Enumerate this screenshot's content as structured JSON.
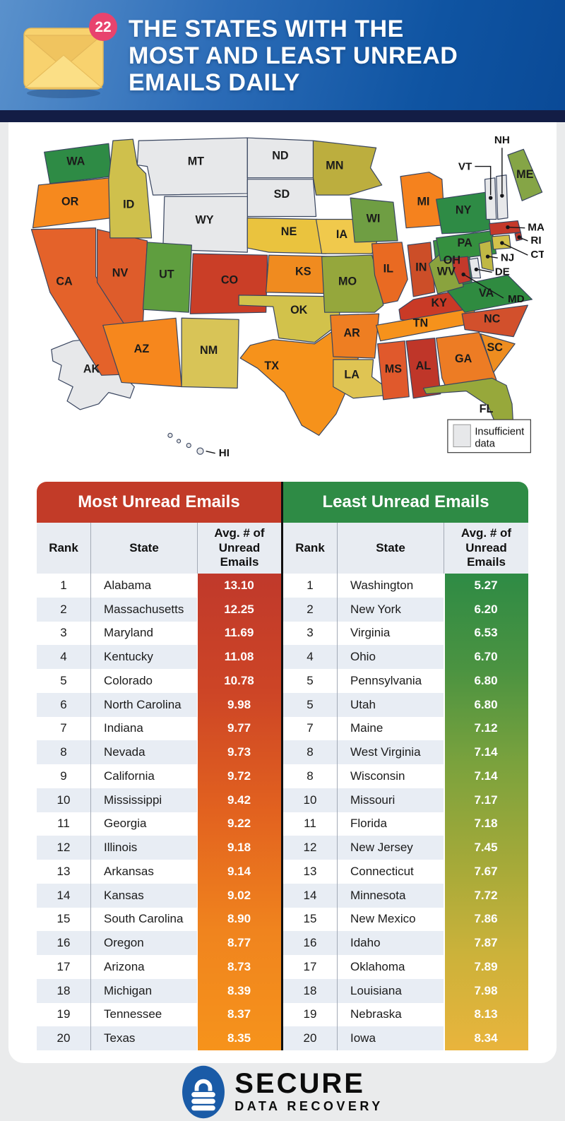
{
  "header": {
    "badge": "22",
    "title": "THE STATES WITH THE\nMOST AND LEAST UNREAD\nEMAILS DAILY"
  },
  "map": {
    "stroke": "#3a4660",
    "insufficient_color": "#e7e8ea",
    "legend_label": "Insufficient data",
    "states": [
      {
        "id": "MT",
        "color": null
      },
      {
        "id": "ND",
        "color": null
      },
      {
        "id": "SD",
        "color": null
      },
      {
        "id": "WY",
        "color": null
      },
      {
        "id": "AK",
        "color": null
      },
      {
        "id": "HI",
        "color": null
      },
      {
        "id": "WA",
        "color": "#2e8b45"
      },
      {
        "id": "OR",
        "color": "#f6891e"
      },
      {
        "id": "CA",
        "color": "#e4622a"
      },
      {
        "id": "NV",
        "color": "#de5c2b"
      },
      {
        "id": "ID",
        "color": "#cfc04c"
      },
      {
        "id": "UT",
        "color": "#5f9e3f"
      },
      {
        "id": "AZ",
        "color": "#f6871d"
      },
      {
        "id": "NM",
        "color": "#d8c457"
      },
      {
        "id": "CO",
        "color": "#ca3e27"
      },
      {
        "id": "NE",
        "color": "#eac33e"
      },
      {
        "id": "KS",
        "color": "#f08b1f"
      },
      {
        "id": "OK",
        "color": "#d2c24b"
      },
      {
        "id": "TX",
        "color": "#f6921b"
      },
      {
        "id": "MN",
        "color": "#bcae3e"
      },
      {
        "id": "IA",
        "color": "#f0c94c"
      },
      {
        "id": "MO",
        "color": "#95a73c"
      },
      {
        "id": "AR",
        "color": "#ee7e22"
      },
      {
        "id": "LA",
        "color": "#dfc453"
      },
      {
        "id": "WI",
        "color": "#6f9e43"
      },
      {
        "id": "IL",
        "color": "#e96a22"
      },
      {
        "id": "MI",
        "color": "#f5821e"
      },
      {
        "id": "IN",
        "color": "#cc4e28"
      },
      {
        "id": "OH",
        "color": "#3e9144"
      },
      {
        "id": "KY",
        "color": "#c93a26"
      },
      {
        "id": "TN",
        "color": "#f6921b"
      },
      {
        "id": "MS",
        "color": "#e0592c"
      },
      {
        "id": "AL",
        "color": "#bf3629"
      },
      {
        "id": "GA",
        "color": "#ed7c24"
      },
      {
        "id": "SC",
        "color": "#ee8d1f"
      },
      {
        "id": "NC",
        "color": "#d2502c"
      },
      {
        "id": "VA",
        "color": "#2f8b40"
      },
      {
        "id": "WV",
        "color": "#8aa33e"
      },
      {
        "id": "PA",
        "color": "#35903f"
      },
      {
        "id": "NY",
        "color": "#2e8b45"
      },
      {
        "id": "ME",
        "color": "#85a546"
      },
      {
        "id": "FL",
        "color": "#97a83b"
      },
      {
        "id": "VT",
        "color": null
      },
      {
        "id": "NH",
        "color": null
      },
      {
        "id": "MA",
        "color": "#c4392b"
      },
      {
        "id": "RI",
        "color": "#c4392b"
      },
      {
        "id": "CT",
        "color": "#d2c24a"
      },
      {
        "id": "NJ",
        "color": "#c0b845"
      },
      {
        "id": "DE",
        "color": null
      },
      {
        "id": "MD",
        "color": "#c4392b"
      }
    ]
  },
  "tables": {
    "columns": [
      "Rank",
      "State",
      "Avg. # of Unread Emails"
    ],
    "most": {
      "title": "Most Unread Emails",
      "banner_color": "#c23b28",
      "value_gradient": [
        "#c0392b",
        "#cd4526",
        "#e2621f",
        "#f0841e",
        "#f6931b"
      ]
    },
    "least": {
      "title": "Least Unread Emails",
      "banner_color": "#2e8b45",
      "value_gradient": [
        "#2e8b45",
        "#4b9341",
        "#7ba23d",
        "#a3a939",
        "#ccb23a",
        "#e9b43c"
      ]
    }
  },
  "chart_data": {
    "type": "choropleth+ranking-table",
    "title": "The States with the Most and Least Unread Emails Daily",
    "insufficient_data_states": [
      "MT",
      "ND",
      "SD",
      "WY",
      "VT",
      "NH",
      "DE",
      "AK",
      "HI"
    ],
    "most_unread": {
      "columns": [
        "Rank",
        "State",
        "Avg. # of Unread Emails"
      ],
      "rows": [
        [
          "1",
          "Alabama",
          "13.10"
        ],
        [
          "2",
          "Massachusetts",
          "12.25"
        ],
        [
          "3",
          "Maryland",
          "11.69"
        ],
        [
          "4",
          "Kentucky",
          "11.08"
        ],
        [
          "5",
          "Colorado",
          "10.78"
        ],
        [
          "6",
          "North Carolina",
          "9.98"
        ],
        [
          "7",
          "Indiana",
          "9.77"
        ],
        [
          "8",
          "Nevada",
          "9.73"
        ],
        [
          "9",
          "California",
          "9.72"
        ],
        [
          "10",
          "Mississippi",
          "9.42"
        ],
        [
          "11",
          "Georgia",
          "9.22"
        ],
        [
          "12",
          "Illinois",
          "9.18"
        ],
        [
          "13",
          "Arkansas",
          "9.14"
        ],
        [
          "14",
          "Kansas",
          "9.02"
        ],
        [
          "15",
          "South Carolina",
          "8.90"
        ],
        [
          "16",
          "Oregon",
          "8.77"
        ],
        [
          "17",
          "Arizona",
          "8.73"
        ],
        [
          "18",
          "Michigan",
          "8.39"
        ],
        [
          "19",
          "Tennessee",
          "8.37"
        ],
        [
          "20",
          "Texas",
          "8.35"
        ]
      ]
    },
    "least_unread": {
      "columns": [
        "Rank",
        "State",
        "Avg. # of Unread Emails"
      ],
      "rows": [
        [
          "1",
          "Washington",
          "5.27"
        ],
        [
          "2",
          "New York",
          "6.20"
        ],
        [
          "3",
          "Virginia",
          "6.53"
        ],
        [
          "4",
          "Ohio",
          "6.70"
        ],
        [
          "5",
          "Pennsylvania",
          "6.80"
        ],
        [
          "5",
          "Utah",
          "6.80"
        ],
        [
          "7",
          "Maine",
          "7.12"
        ],
        [
          "8",
          "West Virginia",
          "7.14"
        ],
        [
          "8",
          "Wisconsin",
          "7.14"
        ],
        [
          "10",
          "Missouri",
          "7.17"
        ],
        [
          "11",
          "Florida",
          "7.18"
        ],
        [
          "12",
          "New Jersey",
          "7.45"
        ],
        [
          "13",
          "Connecticut",
          "7.67"
        ],
        [
          "14",
          "Minnesota",
          "7.72"
        ],
        [
          "15",
          "New Mexico",
          "7.86"
        ],
        [
          "16",
          "Idaho",
          "7.87"
        ],
        [
          "17",
          "Oklahoma",
          "7.89"
        ],
        [
          "18",
          "Louisiana",
          "7.98"
        ],
        [
          "19",
          "Nebraska",
          "8.13"
        ],
        [
          "20",
          "Iowa",
          "8.34"
        ]
      ]
    }
  },
  "footer": {
    "brand_line1": "SECURE",
    "brand_line2": "DATA RECOVERY"
  }
}
